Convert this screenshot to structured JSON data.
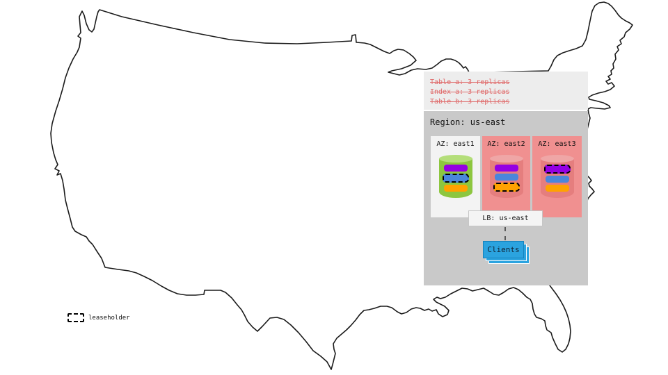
{
  "colors": {
    "panel-light": "#EDEDED",
    "panel-dark": "#C9C9C9",
    "strike-red": "#E06C6C",
    "az-light": "#F3F3F3",
    "az-pink": "#F09090",
    "cyl-green": "#8DC63F",
    "cyl-green-top": "#B4DE7A",
    "cyl-red": "#E57E7E",
    "cyl-red-top": "#EFA6A6",
    "purple": "#9400E3",
    "blue": "#4A86DB",
    "orange": "#FFA200",
    "clients-blue": "#2BA3DF",
    "clients-border": "#1583BD"
  },
  "annotations": {
    "lines": [
      "Table a: 3 replicas",
      "Index a: 3 replicas",
      "Table b: 3 replicas"
    ]
  },
  "region": {
    "title": "Region: us-east",
    "azs": [
      {
        "label": "AZ: east1",
        "variant": "light",
        "cylinder": "green",
        "replicas": [
          {
            "color": "purple",
            "leaseholder": false
          },
          {
            "color": "blue",
            "leaseholder": true
          },
          {
            "color": "orange",
            "leaseholder": false
          }
        ]
      },
      {
        "label": "AZ: east2",
        "variant": "pink",
        "cylinder": "red",
        "replicas": [
          {
            "color": "purple",
            "leaseholder": false
          },
          {
            "color": "blue",
            "leaseholder": false
          },
          {
            "color": "orange",
            "leaseholder": true
          }
        ]
      },
      {
        "label": "AZ: east3",
        "variant": "pink",
        "cylinder": "red",
        "replicas": [
          {
            "color": "purple",
            "leaseholder": true
          },
          {
            "color": "blue",
            "leaseholder": false
          },
          {
            "color": "orange",
            "leaseholder": false
          }
        ]
      }
    ]
  },
  "load_balancer": {
    "label": "LB: us-east"
  },
  "clients": {
    "label": "Clients"
  },
  "legend": {
    "label": "leaseholder"
  }
}
